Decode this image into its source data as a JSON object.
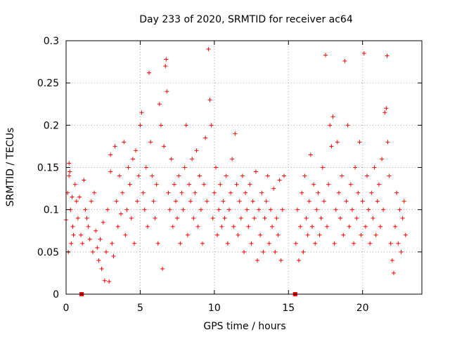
{
  "chart_data": {
    "type": "scatter",
    "title": "Day 233 of 2020, SRMTID for receiver ac64",
    "xlabel": "GPS time / hours",
    "ylabel": "SRMTID / TECUs",
    "xlim": [
      0,
      24
    ],
    "ylim": [
      0,
      0.3
    ],
    "x_ticks": [
      0,
      5,
      10,
      15,
      20
    ],
    "x_tick_labels": [
      "0",
      "5",
      "10",
      "15",
      "20"
    ],
    "y_ticks": [
      0,
      0.05,
      0.1,
      0.15,
      0.2,
      0.25,
      0.3
    ],
    "y_tick_labels": [
      "0",
      "0.05",
      "0.1",
      "0.15",
      "0.2",
      "0.25",
      "0.3"
    ],
    "grid": true,
    "marker": "+",
    "series_color": "#ff0000",
    "gap_markers": [
      1.05,
      15.45
    ],
    "series": [
      {
        "name": "SRMTID",
        "points": [
          [
            0.0,
            0.088
          ],
          [
            0.1,
            0.12
          ],
          [
            0.15,
            0.05
          ],
          [
            0.2,
            0.14
          ],
          [
            0.2,
            0.155
          ],
          [
            0.25,
            0.145
          ],
          [
            0.3,
            0.1
          ],
          [
            0.35,
            0.06
          ],
          [
            0.4,
            0.115
          ],
          [
            0.45,
            0.08
          ],
          [
            0.5,
            0.07
          ],
          [
            0.6,
            0.13
          ],
          [
            0.7,
            0.11
          ],
          [
            0.8,
            0.09
          ],
          [
            0.9,
            0.115
          ],
          [
            1.0,
            0.07
          ],
          [
            1.1,
            0.06
          ],
          [
            1.2,
            0.135
          ],
          [
            1.3,
            0.1
          ],
          [
            1.4,
            0.09
          ],
          [
            1.5,
            0.08
          ],
          [
            1.6,
            0.065
          ],
          [
            1.7,
            0.11
          ],
          [
            1.8,
            0.05
          ],
          [
            1.9,
            0.12
          ],
          [
            2.0,
            0.075
          ],
          [
            2.1,
            0.055
          ],
          [
            2.2,
            0.04
          ],
          [
            2.3,
            0.065
          ],
          [
            2.4,
            0.03
          ],
          [
            2.5,
            0.085
          ],
          [
            2.6,
            0.016
          ],
          [
            2.7,
            0.05
          ],
          [
            2.8,
            0.1
          ],
          [
            2.9,
            0.015
          ],
          [
            3.0,
            0.165
          ],
          [
            3.0,
            0.145
          ],
          [
            3.1,
            0.06
          ],
          [
            3.2,
            0.045
          ],
          [
            3.3,
            0.175
          ],
          [
            3.4,
            0.11
          ],
          [
            3.5,
            0.08
          ],
          [
            3.6,
            0.14
          ],
          [
            3.7,
            0.095
          ],
          [
            3.8,
            0.12
          ],
          [
            3.9,
            0.18
          ],
          [
            4.0,
            0.07
          ],
          [
            4.1,
            0.1
          ],
          [
            4.2,
            0.15
          ],
          [
            4.3,
            0.13
          ],
          [
            4.4,
            0.09
          ],
          [
            4.5,
            0.16
          ],
          [
            4.6,
            0.06
          ],
          [
            4.7,
            0.17
          ],
          [
            4.8,
            0.11
          ],
          [
            4.9,
            0.14
          ],
          [
            5.0,
            0.2
          ],
          [
            5.1,
            0.215
          ],
          [
            5.2,
            0.12
          ],
          [
            5.3,
            0.1
          ],
          [
            5.4,
            0.15
          ],
          [
            5.5,
            0.08
          ],
          [
            5.6,
            0.262
          ],
          [
            5.7,
            0.18
          ],
          [
            5.8,
            0.14
          ],
          [
            5.9,
            0.11
          ],
          [
            6.0,
            0.09
          ],
          [
            6.1,
            0.13
          ],
          [
            6.2,
            0.06
          ],
          [
            6.3,
            0.225
          ],
          [
            6.4,
            0.2
          ],
          [
            6.5,
            0.03
          ],
          [
            6.6,
            0.175
          ],
          [
            6.7,
            0.27
          ],
          [
            6.75,
            0.278
          ],
          [
            6.8,
            0.24
          ],
          [
            6.9,
            0.12
          ],
          [
            7.0,
            0.1
          ],
          [
            7.1,
            0.16
          ],
          [
            7.2,
            0.08
          ],
          [
            7.3,
            0.13
          ],
          [
            7.4,
            0.11
          ],
          [
            7.5,
            0.09
          ],
          [
            7.6,
            0.14
          ],
          [
            7.7,
            0.06
          ],
          [
            7.8,
            0.12
          ],
          [
            7.9,
            0.1
          ],
          [
            8.0,
            0.15
          ],
          [
            8.1,
            0.2
          ],
          [
            8.2,
            0.07
          ],
          [
            8.3,
            0.13
          ],
          [
            8.4,
            0.11
          ],
          [
            8.5,
            0.16
          ],
          [
            8.6,
            0.09
          ],
          [
            8.7,
            0.12
          ],
          [
            8.8,
            0.17
          ],
          [
            8.9,
            0.08
          ],
          [
            9.0,
            0.14
          ],
          [
            9.1,
            0.1
          ],
          [
            9.2,
            0.06
          ],
          [
            9.3,
            0.13
          ],
          [
            9.4,
            0.185
          ],
          [
            9.5,
            0.11
          ],
          [
            9.6,
            0.29
          ],
          [
            9.7,
            0.23
          ],
          [
            9.8,
            0.2
          ],
          [
            9.9,
            0.09
          ],
          [
            10.0,
            0.12
          ],
          [
            10.1,
            0.15
          ],
          [
            10.2,
            0.07
          ],
          [
            10.3,
            0.1
          ],
          [
            10.4,
            0.13
          ],
          [
            10.5,
            0.08
          ],
          [
            10.6,
            0.11
          ],
          [
            10.7,
            0.09
          ],
          [
            10.8,
            0.14
          ],
          [
            10.9,
            0.06
          ],
          [
            11.0,
            0.1
          ],
          [
            11.1,
            0.12
          ],
          [
            11.2,
            0.16
          ],
          [
            11.3,
            0.08
          ],
          [
            11.4,
            0.19
          ],
          [
            11.5,
            0.13
          ],
          [
            11.6,
            0.07
          ],
          [
            11.7,
            0.11
          ],
          [
            11.8,
            0.09
          ],
          [
            11.9,
            0.14
          ],
          [
            12.0,
            0.05
          ],
          [
            12.1,
            0.12
          ],
          [
            12.2,
            0.1
          ],
          [
            12.3,
            0.08
          ],
          [
            12.4,
            0.13
          ],
          [
            12.5,
            0.06
          ],
          [
            12.6,
            0.11
          ],
          [
            12.7,
            0.09
          ],
          [
            12.8,
            0.145
          ],
          [
            12.9,
            0.04
          ],
          [
            13.0,
            0.1
          ],
          [
            13.1,
            0.07
          ],
          [
            13.2,
            0.12
          ],
          [
            13.3,
            0.05
          ],
          [
            13.4,
            0.09
          ],
          [
            13.5,
            0.11
          ],
          [
            13.6,
            0.14
          ],
          [
            13.7,
            0.06
          ],
          [
            13.8,
            0.1
          ],
          [
            13.9,
            0.08
          ],
          [
            14.0,
            0.125
          ],
          [
            14.1,
            0.05
          ],
          [
            14.2,
            0.09
          ],
          [
            14.3,
            0.07
          ],
          [
            14.4,
            0.135
          ],
          [
            14.5,
            0.04
          ],
          [
            14.6,
            0.1
          ],
          [
            14.7,
            0.14
          ],
          [
            15.5,
            0.06
          ],
          [
            15.6,
            0.1
          ],
          [
            15.7,
            0.04
          ],
          [
            15.8,
            0.08
          ],
          [
            15.9,
            0.12
          ],
          [
            16.0,
            0.05
          ],
          [
            16.1,
            0.14
          ],
          [
            16.2,
            0.09
          ],
          [
            16.3,
            0.07
          ],
          [
            16.4,
            0.11
          ],
          [
            16.5,
            0.165
          ],
          [
            16.6,
            0.08
          ],
          [
            16.7,
            0.13
          ],
          [
            16.8,
            0.06
          ],
          [
            16.9,
            0.1
          ],
          [
            17.0,
            0.12
          ],
          [
            17.1,
            0.07
          ],
          [
            17.2,
            0.09
          ],
          [
            17.3,
            0.15
          ],
          [
            17.4,
            0.11
          ],
          [
            17.5,
            0.283
          ],
          [
            17.6,
            0.08
          ],
          [
            17.7,
            0.13
          ],
          [
            17.8,
            0.2
          ],
          [
            17.9,
            0.175
          ],
          [
            18.0,
            0.21
          ],
          [
            18.1,
            0.06
          ],
          [
            18.2,
            0.1
          ],
          [
            18.3,
            0.18
          ],
          [
            18.4,
            0.12
          ],
          [
            18.5,
            0.09
          ],
          [
            18.6,
            0.14
          ],
          [
            18.7,
            0.07
          ],
          [
            18.8,
            0.276
          ],
          [
            18.9,
            0.11
          ],
          [
            19.0,
            0.2
          ],
          [
            19.1,
            0.08
          ],
          [
            19.2,
            0.13
          ],
          [
            19.3,
            0.1
          ],
          [
            19.4,
            0.06
          ],
          [
            19.5,
            0.15
          ],
          [
            19.6,
            0.09
          ],
          [
            19.7,
            0.12
          ],
          [
            19.8,
            0.18
          ],
          [
            19.9,
            0.07
          ],
          [
            20.0,
            0.11
          ],
          [
            20.1,
            0.285
          ],
          [
            20.2,
            0.08
          ],
          [
            20.3,
            0.14
          ],
          [
            20.4,
            0.1
          ],
          [
            20.5,
            0.06
          ],
          [
            20.6,
            0.12
          ],
          [
            20.7,
            0.09
          ],
          [
            20.8,
            0.15
          ],
          [
            20.9,
            0.07
          ],
          [
            21.0,
            0.11
          ],
          [
            21.1,
            0.13
          ],
          [
            21.2,
            0.08
          ],
          [
            21.3,
            0.16
          ],
          [
            21.4,
            0.1
          ],
          [
            21.5,
            0.215
          ],
          [
            21.6,
            0.22
          ],
          [
            21.65,
            0.282
          ],
          [
            21.7,
            0.18
          ],
          [
            21.8,
            0.14
          ],
          [
            21.9,
            0.06
          ],
          [
            22.0,
            0.04
          ],
          [
            22.1,
            0.025
          ],
          [
            22.2,
            0.08
          ],
          [
            22.3,
            0.12
          ],
          [
            22.4,
            0.06
          ],
          [
            22.5,
            0.1
          ],
          [
            22.6,
            0.05
          ],
          [
            22.7,
            0.09
          ],
          [
            22.8,
            0.11
          ],
          [
            22.9,
            0.07
          ]
        ]
      }
    ]
  }
}
